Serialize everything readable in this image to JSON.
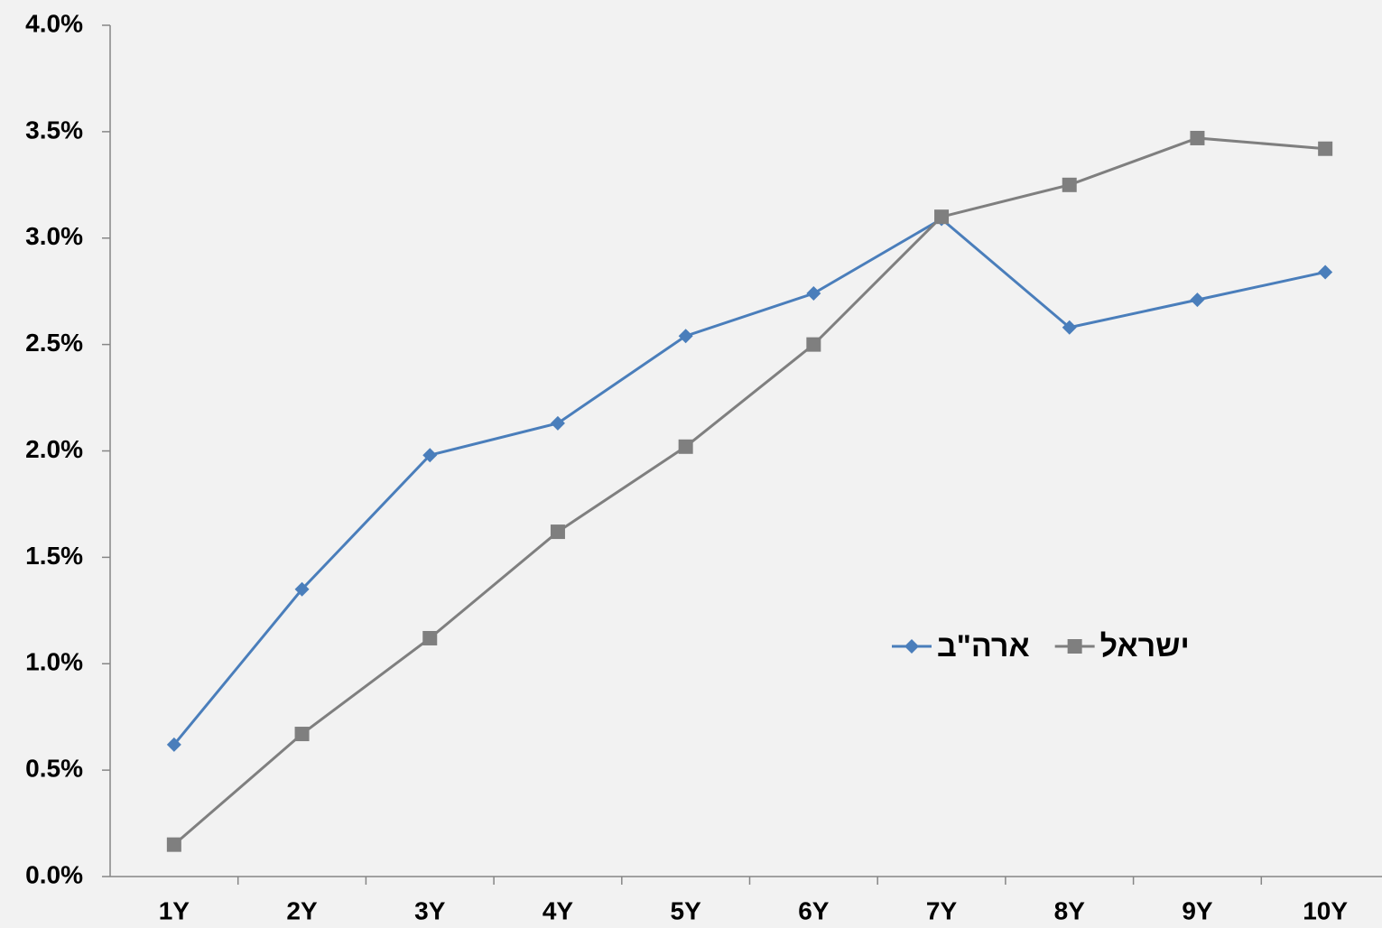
{
  "chart_data": {
    "type": "line",
    "categories": [
      "1Y",
      "2Y",
      "3Y",
      "4Y",
      "5Y",
      "6Y",
      "7Y",
      "8Y",
      "9Y",
      "10Y"
    ],
    "series": [
      {
        "name": "ארה\"ב",
        "color": "#4a7ebb",
        "marker": "diamond",
        "values": [
          0.62,
          1.35,
          1.98,
          2.13,
          2.54,
          2.74,
          3.09,
          2.58,
          2.71,
          2.84
        ]
      },
      {
        "name": "ישראל",
        "color": "#7f7f7f",
        "marker": "square",
        "values": [
          0.15,
          0.67,
          1.12,
          1.62,
          2.02,
          2.5,
          3.1,
          3.25,
          3.47,
          3.42
        ]
      }
    ],
    "ylim": [
      0,
      4
    ],
    "yticks": [
      {
        "value": 0,
        "label": "0.0%"
      },
      {
        "value": 0.5,
        "label": "0.5%"
      },
      {
        "value": 1,
        "label": "1.0%"
      },
      {
        "value": 1.5,
        "label": "1.5%"
      },
      {
        "value": 2,
        "label": "2.0%"
      },
      {
        "value": 2.5,
        "label": "2.5%"
      },
      {
        "value": 3,
        "label": "3.0%"
      },
      {
        "value": 3.5,
        "label": "3.5%"
      },
      {
        "value": 4,
        "label": "4.0%"
      }
    ],
    "grid": false,
    "legend": "right"
  }
}
